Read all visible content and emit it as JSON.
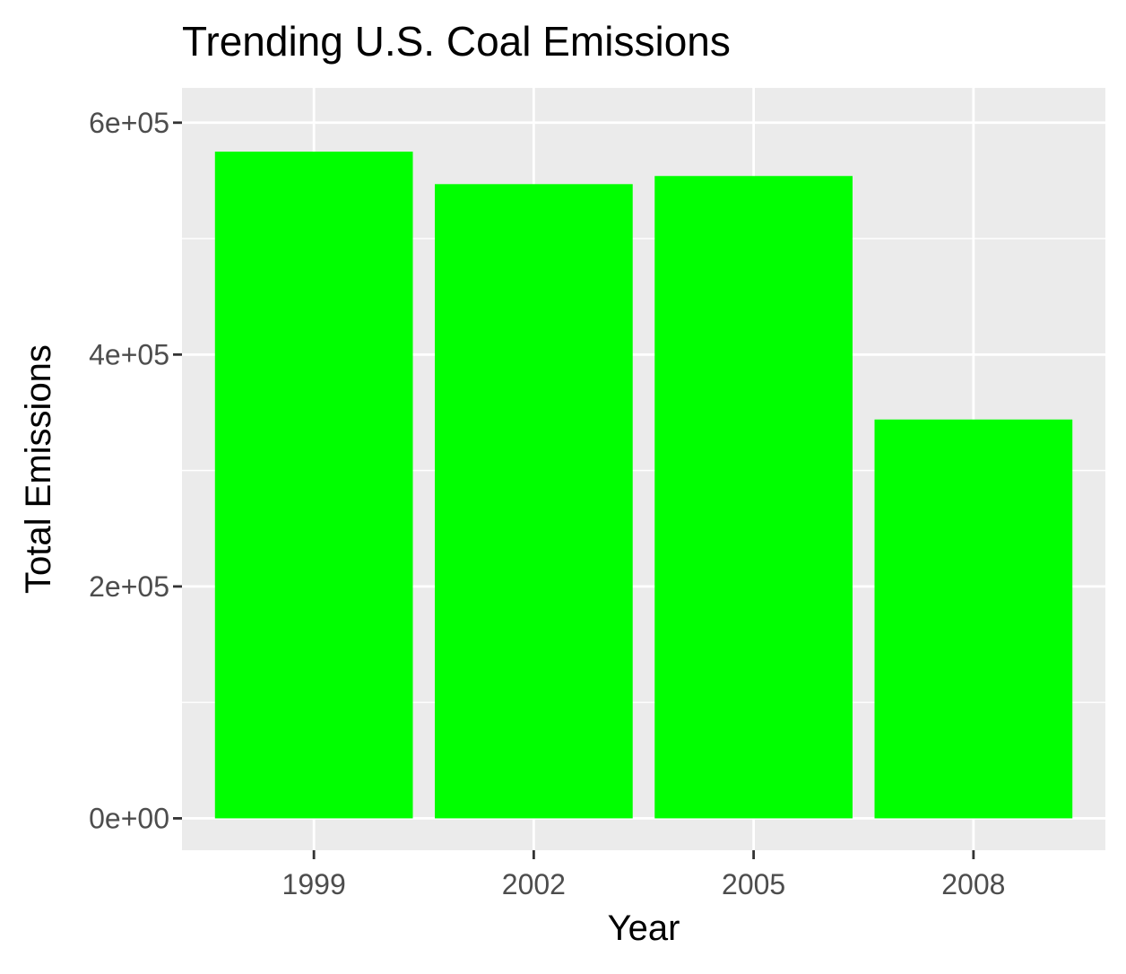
{
  "chart_data": {
    "type": "bar",
    "title": "Trending U.S. Coal Emissions",
    "xlabel": "Year",
    "ylabel": "Total Emissions",
    "categories": [
      "1999",
      "2002",
      "2005",
      "2008"
    ],
    "values": [
      575000,
      547000,
      554000,
      344000
    ],
    "ylim": [
      -27500,
      630000
    ],
    "y_ticks": [
      {
        "value": 0,
        "label": "0e+00"
      },
      {
        "value": 200000,
        "label": "2e+05"
      },
      {
        "value": 400000,
        "label": "4e+05"
      },
      {
        "value": 600000,
        "label": "6e+05"
      }
    ],
    "y_minor_ticks": [
      100000,
      300000,
      500000
    ],
    "grid": true,
    "legend": "none",
    "colors": {
      "bar": "#00FF00",
      "panel_background": "#EBEBEB",
      "grid": "#FFFFFF",
      "axis_text": "#4D4D4D",
      "title_text": "#000000"
    }
  }
}
